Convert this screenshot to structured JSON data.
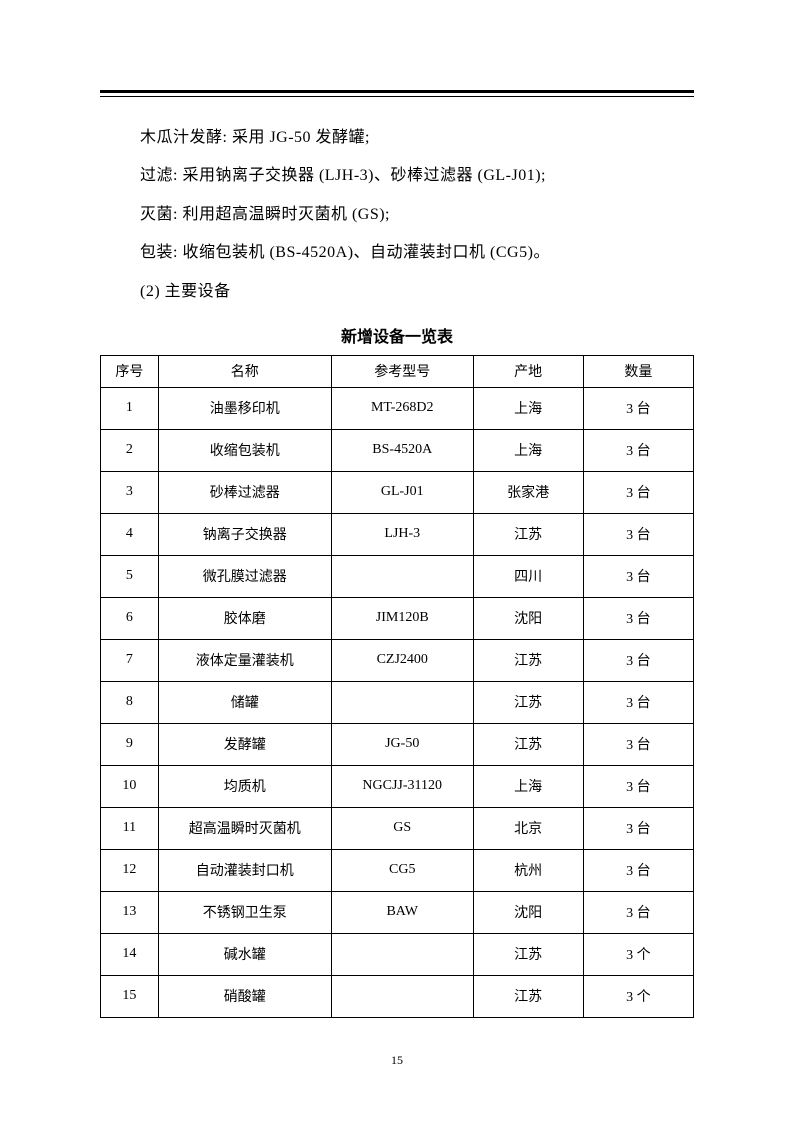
{
  "paragraphs": {
    "p1": "木瓜汁发酵: 采用 JG‑50 发酵罐;",
    "p2": "过滤: 采用钠离子交换器 (LJH‑3)、砂棒过滤器 (GL‑J01);",
    "p3": "灭菌: 利用超高温瞬时灭菌机 (GS);",
    "p4": "包装: 收缩包装机 (BS‑4520A)、自动灌装封口机 (CG5)。",
    "p5": "(2) 主要设备"
  },
  "table_title": "新增设备一览表",
  "columns": [
    "序号",
    "名称",
    "参考型号",
    "产地",
    "数量"
  ],
  "rows": [
    [
      "1",
      "油墨移印机",
      "MT-268D2",
      "上海",
      "3 台"
    ],
    [
      "2",
      "收缩包装机",
      "BS-4520A",
      "上海",
      "3 台"
    ],
    [
      "3",
      "砂棒过滤器",
      "GL-J01",
      "张家港",
      "3 台"
    ],
    [
      "4",
      "钠离子交换器",
      "LJH-3",
      "江苏",
      "3 台"
    ],
    [
      "5",
      "微孔膜过滤器",
      "",
      "四川",
      "3 台"
    ],
    [
      "6",
      "胶体磨",
      "JIM120B",
      "沈阳",
      "3 台"
    ],
    [
      "7",
      "液体定量灌装机",
      "CZJ2400",
      "江苏",
      "3 台"
    ],
    [
      "8",
      "储罐",
      "",
      "江苏",
      "3 台"
    ],
    [
      "9",
      "发酵罐",
      "JG-50",
      "江苏",
      "3 台"
    ],
    [
      "10",
      "均质机",
      "NGCJJ-31120",
      "上海",
      "3 台"
    ],
    [
      "11",
      "超高温瞬时灭菌机",
      "GS",
      "北京",
      "3 台"
    ],
    [
      "12",
      "自动灌装封口机",
      "CG5",
      "杭州",
      "3 台"
    ],
    [
      "13",
      "不锈钢卫生泵",
      "BAW",
      "沈阳",
      "3 台"
    ],
    [
      "14",
      "碱水罐",
      "",
      "江苏",
      "3 个"
    ],
    [
      "15",
      "硝酸罐",
      "",
      "江苏",
      "3 个"
    ]
  ],
  "page_number": "15"
}
